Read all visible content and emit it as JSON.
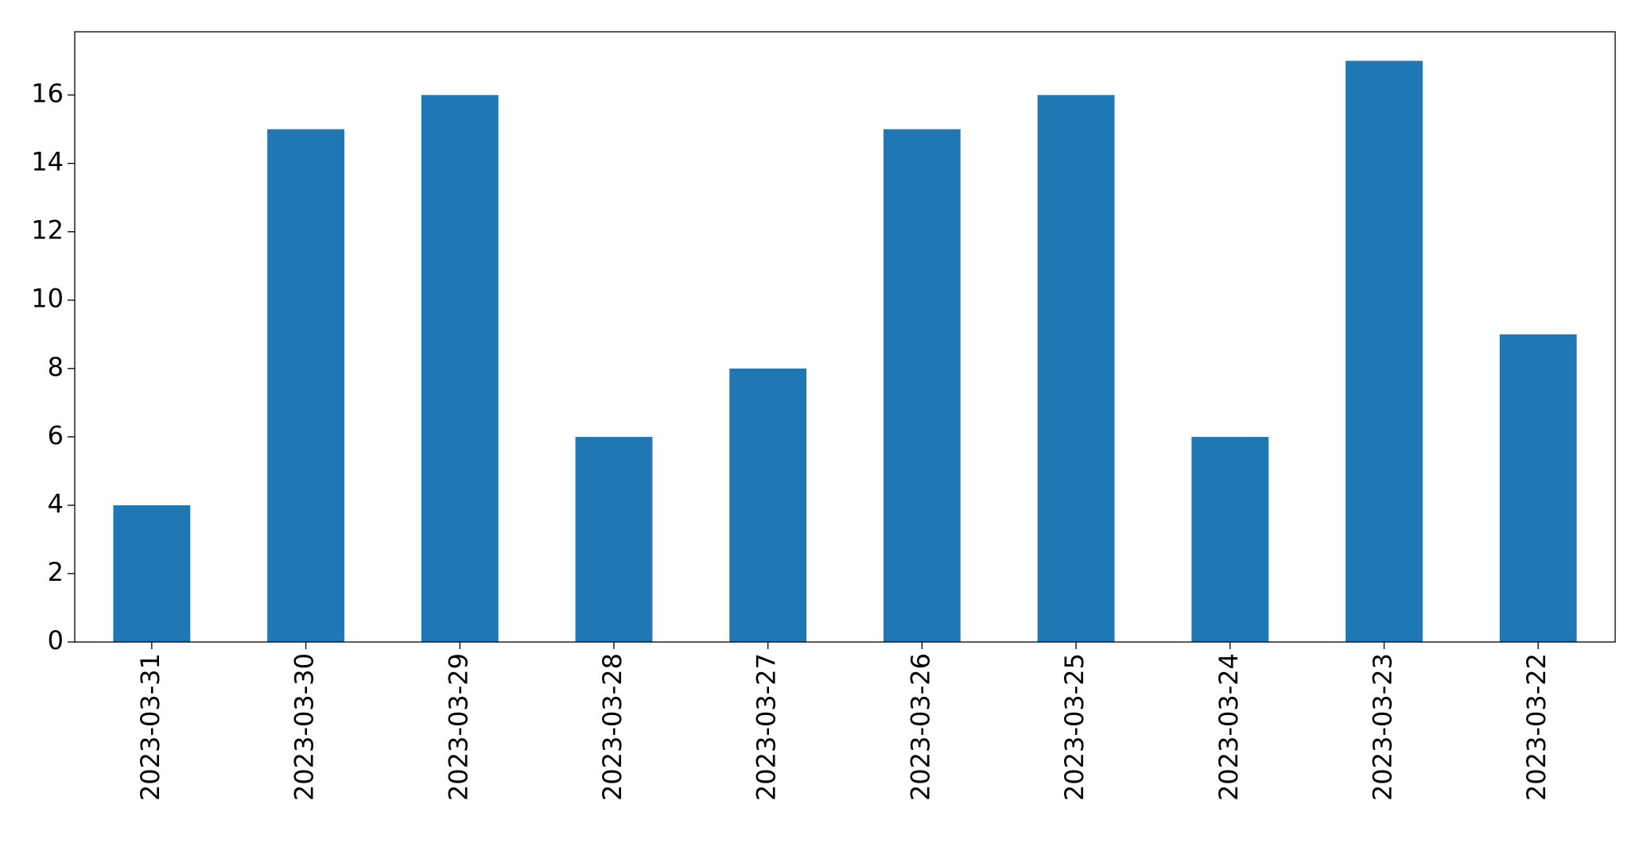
{
  "chart_data": {
    "type": "bar",
    "categories": [
      "2023-03-31",
      "2023-03-30",
      "2023-03-29",
      "2023-03-28",
      "2023-03-27",
      "2023-03-26",
      "2023-03-25",
      "2023-03-24",
      "2023-03-23",
      "2023-03-22"
    ],
    "values": [
      4,
      15,
      16,
      6,
      8,
      15,
      16,
      6,
      17,
      9
    ],
    "color": "#1f77b4",
    "ylim": [
      0,
      17.85
    ],
    "yticks": [
      0,
      2,
      4,
      6,
      8,
      10,
      12,
      14,
      16
    ],
    "grid": false
  }
}
